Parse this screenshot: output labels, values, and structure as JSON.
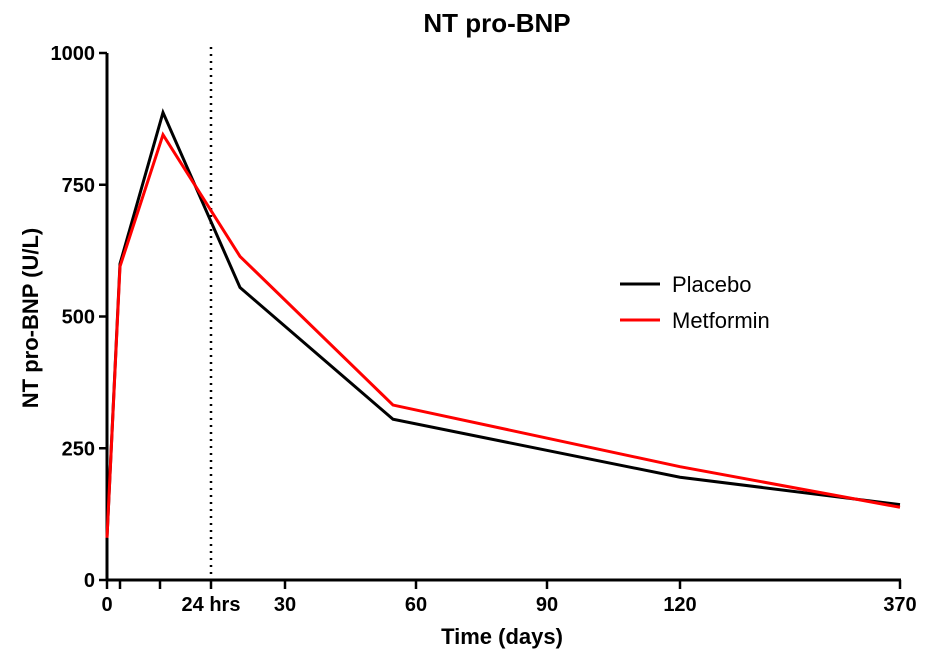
{
  "chart_data": {
    "type": "line",
    "title": "NT pro-BNP",
    "xlabel": "Time (days)",
    "ylabel": "NT pro-BNP (U/L)",
    "ylim": [
      0,
      1000
    ],
    "yticks": [
      0,
      250,
      500,
      750,
      1000
    ],
    "x_tick_labels": [
      "0",
      "24 hrs",
      "30",
      "60",
      "90",
      "120",
      "370"
    ],
    "legend_position": "right",
    "grid": false,
    "reference_line": {
      "style": "dotted",
      "at_label": "24 hrs"
    },
    "series": [
      {
        "name": "Placebo",
        "color": "#000000",
        "points": [
          {
            "x": "0",
            "y": 80
          },
          {
            "x": "3 hrs",
            "y": 600
          },
          {
            "x": "12 hrs",
            "y": 887
          },
          {
            "x": "day 2",
            "y": 555
          },
          {
            "x": "day 5",
            "y": 305
          },
          {
            "x": "day 120",
            "y": 195
          },
          {
            "x": "370",
            "y": 143
          }
        ]
      },
      {
        "name": "Metformin",
        "color": "#ff0000",
        "points": [
          {
            "x": "0",
            "y": 80
          },
          {
            "x": "3 hrs",
            "y": 595
          },
          {
            "x": "12 hrs",
            "y": 845
          },
          {
            "x": "day 2",
            "y": 614
          },
          {
            "x": "day 5",
            "y": 332
          },
          {
            "x": "day 120",
            "y": 215
          },
          {
            "x": "370",
            "y": 138
          }
        ]
      }
    ]
  }
}
